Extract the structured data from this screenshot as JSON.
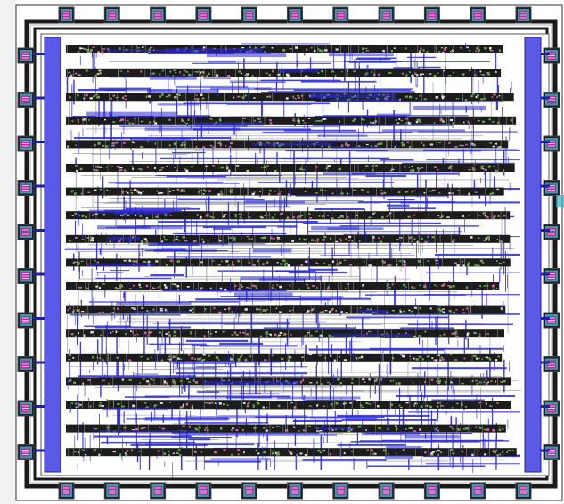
{
  "view": {
    "type": "chip-layout",
    "background": "#ffffff",
    "gutter_color": "#f2f2f2"
  },
  "colors": {
    "ring_outer": "#1a1a1a",
    "ring_inner": "#e8e8e8",
    "power_rail": "#5a5ae6",
    "power_rail_edge": "#1f1fa8",
    "cell_dark": "#1c1c1c",
    "cell_speckle_green": "#6aa84f",
    "cell_speckle_pink": "#cc6699",
    "route_blue": "#2a2ad8",
    "route_grey": "#7a7a7a",
    "pad_body": "#1e1e2a",
    "pad_cyan": "#3fb0c0",
    "pad_magenta": "#b0309a",
    "pad_frame": "#444444"
  },
  "io_pads": {
    "top_count": 11,
    "bottom_count": 11,
    "left_count": 10,
    "right_count": 10
  },
  "std_cell_rows": {
    "count": 18
  }
}
